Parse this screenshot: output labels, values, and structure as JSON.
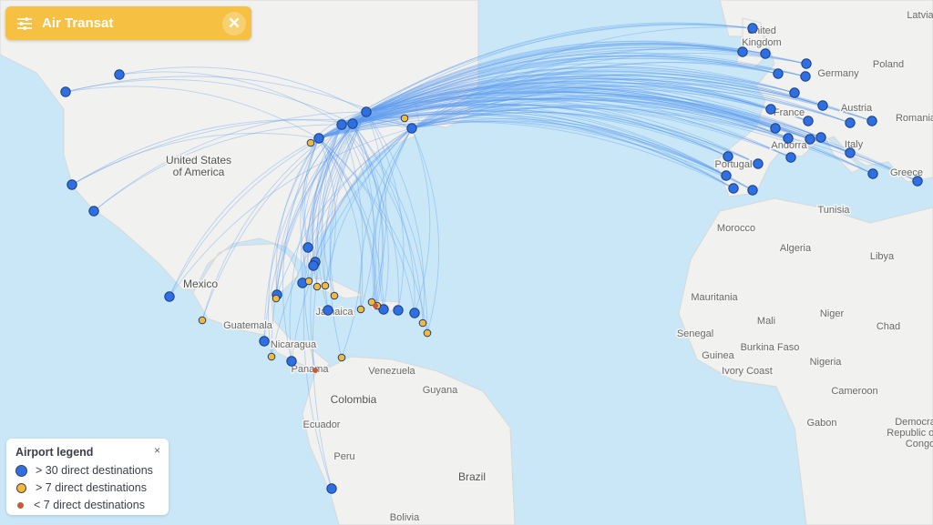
{
  "header": {
    "title": "Air Transat",
    "filter_icon": "sliders-icon",
    "close_icon": "close-icon"
  },
  "legend": {
    "title": "Airport legend",
    "close": "×",
    "items": [
      {
        "label": "> 30 direct destinations",
        "color": "#2f6fe4"
      },
      {
        "label": "> 7 direct destinations",
        "color": "#f5b93a"
      },
      {
        "label": "< 7 direct destinations",
        "color": "#c65a3a"
      }
    ]
  },
  "colors": {
    "ocean": "#c9e7f7",
    "land": "#f1f1ef",
    "route": "#5b9cf0",
    "header": "#f6c142"
  },
  "map_labels": [
    "United Kingdom",
    "Germany",
    "Poland",
    "Latvia",
    "France",
    "Austria",
    "Romania",
    "Andorra",
    "Italy",
    "Portugal",
    "Greece",
    "Tunisia",
    "Morocco",
    "Algeria",
    "Libya",
    "Mauritania",
    "Mali",
    "Niger",
    "Chad",
    "Senegal",
    "Burkina Faso",
    "Guinea",
    "Ivory Coast",
    "Nigeria",
    "Cameroon",
    "Gabon",
    "Democratic Republic of the Congo",
    "United States of America",
    "Mexico",
    "Guatemala",
    "Nicaragua",
    "Panama",
    "Jamaica",
    "Venezuela",
    "Guyana",
    "Colombia",
    "Ecuador",
    "Peru",
    "Brazil",
    "Bolivia"
  ]
}
